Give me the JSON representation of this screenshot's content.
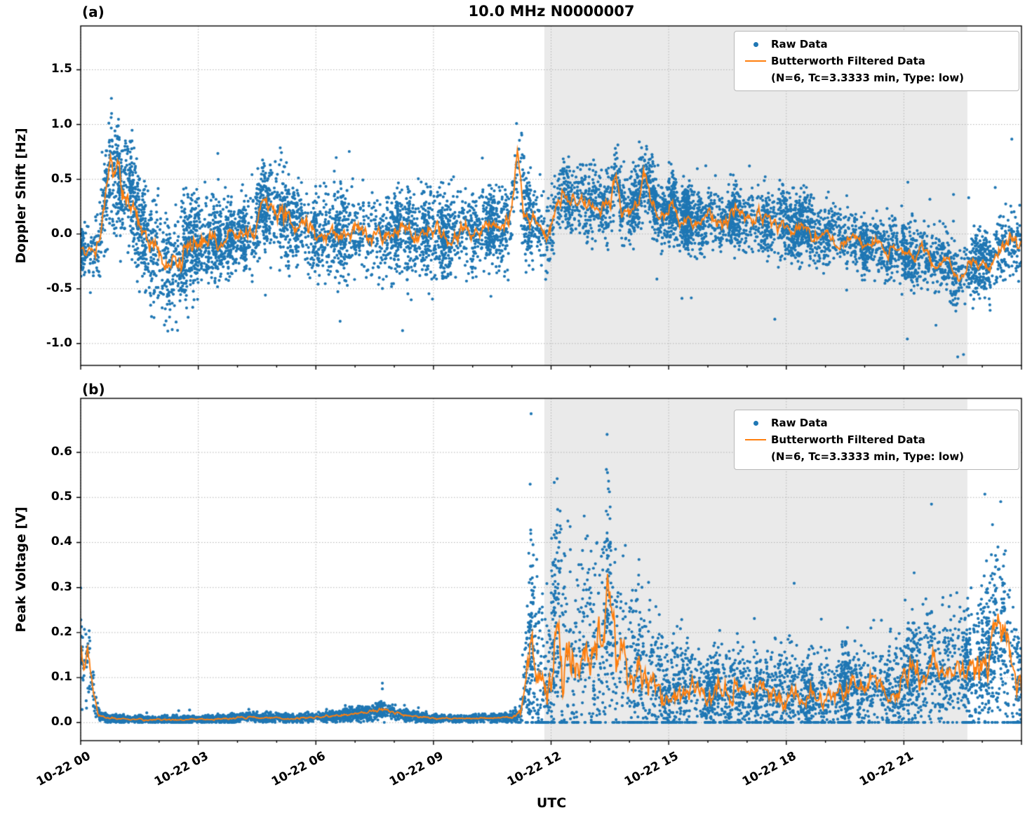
{
  "figure": {
    "title": "10.0 MHz N0000007",
    "xlabel": "UTC",
    "panel_a_label": "(a)",
    "panel_b_label": "(b)",
    "colors": {
      "raw": "#1f77b4",
      "filtered": "#ff7f0e",
      "shade": "rgba(125,125,125,0.16)",
      "grid": "#b3b3b3",
      "spine": "#000000"
    },
    "legend": {
      "raw_label": "Raw Data",
      "filtered_label": "Butterworth Filtered Data",
      "filtered_sublabel": "(N=6, Tc=3.3333 min, Type: low)"
    }
  },
  "chart_data": [
    {
      "type": "scatter",
      "panel": "a",
      "title": "10.0 MHz N0000007",
      "ylabel": "Doppler Shift [Hz]",
      "xlabel": "UTC",
      "legend": [
        "Raw Data",
        "Butterworth Filtered Data (N=6, Tc=3.3333 min, Type: low)"
      ],
      "xlim_hours": [
        0,
        24
      ],
      "x_tick_hours": [
        0,
        3,
        6,
        9,
        12,
        15,
        18,
        21
      ],
      "x_tick_labels": [
        "10-22 00",
        "10-22 03",
        "10-22 06",
        "10-22 09",
        "10-22 12",
        "10-22 15",
        "10-22 18",
        "10-22 21"
      ],
      "ylim": [
        -1.2,
        1.9
      ],
      "yticks": [
        -1.0,
        -0.5,
        0.0,
        0.5,
        1.0,
        1.5
      ],
      "ytick_labels": [
        "-1.0",
        "-0.5",
        "0.0",
        "0.5",
        "1.0",
        "1.5"
      ],
      "shaded_region_hours": [
        11.83,
        22.62
      ],
      "grid": true,
      "filtered_line": [
        [
          0,
          -0.12
        ],
        [
          0.15,
          -0.2
        ],
        [
          0.3,
          -0.15
        ],
        [
          0.45,
          -0.05
        ],
        [
          0.6,
          0.25
        ],
        [
          0.7,
          0.55
        ],
        [
          0.78,
          0.7
        ],
        [
          0.85,
          0.45
        ],
        [
          0.95,
          0.55
        ],
        [
          1.05,
          0.3
        ],
        [
          1.2,
          0.4
        ],
        [
          1.35,
          0.3
        ],
        [
          1.5,
          0.12
        ],
        [
          1.65,
          0.0
        ],
        [
          1.8,
          -0.08
        ],
        [
          1.95,
          -0.15
        ],
        [
          2.1,
          -0.3
        ],
        [
          2.25,
          -0.35
        ],
        [
          2.4,
          -0.22
        ],
        [
          2.55,
          -0.28
        ],
        [
          2.7,
          -0.18
        ],
        [
          2.85,
          -0.12
        ],
        [
          3.0,
          -0.05
        ],
        [
          3.2,
          -0.1
        ],
        [
          3.4,
          -0.02
        ],
        [
          3.6,
          -0.08
        ],
        [
          3.8,
          0.0
        ],
        [
          4.0,
          -0.04
        ],
        [
          4.2,
          0.02
        ],
        [
          4.4,
          0.0
        ],
        [
          4.6,
          0.28
        ],
        [
          4.75,
          0.22
        ],
        [
          4.9,
          0.26
        ],
        [
          5.1,
          0.18
        ],
        [
          5.3,
          0.14
        ],
        [
          5.5,
          0.1
        ],
        [
          5.7,
          0.06
        ],
        [
          5.9,
          0.02
        ],
        [
          6.1,
          0.0
        ],
        [
          6.4,
          0.04
        ],
        [
          6.7,
          0.0
        ],
        [
          7.0,
          0.03
        ],
        [
          7.3,
          -0.02
        ],
        [
          7.6,
          0.03
        ],
        [
          7.9,
          0.0
        ],
        [
          8.2,
          0.04
        ],
        [
          8.5,
          -0.02
        ],
        [
          8.8,
          0.03
        ],
        [
          9.1,
          0.0
        ],
        [
          9.4,
          -0.04
        ],
        [
          9.7,
          0.03
        ],
        [
          10.0,
          0.0
        ],
        [
          10.3,
          0.05
        ],
        [
          10.6,
          0.08
        ],
        [
          10.85,
          0.05
        ],
        [
          11.0,
          0.15
        ],
        [
          11.15,
          0.72
        ],
        [
          11.3,
          0.25
        ],
        [
          11.45,
          0.18
        ],
        [
          11.6,
          0.12
        ],
        [
          11.75,
          0.05
        ],
        [
          11.9,
          -0.05
        ],
        [
          12.0,
          0.05
        ],
        [
          12.15,
          0.3
        ],
        [
          12.3,
          0.38
        ],
        [
          12.5,
          0.28
        ],
        [
          12.7,
          0.32
        ],
        [
          12.9,
          0.26
        ],
        [
          13.1,
          0.3
        ],
        [
          13.3,
          0.24
        ],
        [
          13.5,
          0.28
        ],
        [
          13.65,
          0.55
        ],
        [
          13.8,
          0.25
        ],
        [
          14.0,
          0.22
        ],
        [
          14.2,
          0.3
        ],
        [
          14.35,
          0.55
        ],
        [
          14.5,
          0.42
        ],
        [
          14.7,
          0.2
        ],
        [
          14.9,
          0.15
        ],
        [
          15.1,
          0.28
        ],
        [
          15.3,
          0.12
        ],
        [
          15.5,
          0.18
        ],
        [
          15.8,
          0.1
        ],
        [
          16.1,
          0.16
        ],
        [
          16.4,
          0.1
        ],
        [
          16.7,
          0.2
        ],
        [
          17.0,
          0.1
        ],
        [
          17.3,
          0.16
        ],
        [
          17.6,
          0.06
        ],
        [
          17.9,
          0.12
        ],
        [
          18.2,
          0.02
        ],
        [
          18.5,
          0.08
        ],
        [
          18.8,
          -0.04
        ],
        [
          19.1,
          0.02
        ],
        [
          19.4,
          -0.08
        ],
        [
          19.7,
          -0.02
        ],
        [
          20.0,
          -0.12
        ],
        [
          20.3,
          -0.08
        ],
        [
          20.6,
          -0.18
        ],
        [
          20.9,
          -0.12
        ],
        [
          21.2,
          -0.22
        ],
        [
          21.5,
          -0.18
        ],
        [
          21.8,
          -0.28
        ],
        [
          22.1,
          -0.22
        ],
        [
          22.35,
          -0.45
        ],
        [
          22.55,
          -0.32
        ],
        [
          22.8,
          -0.28
        ],
        [
          23.0,
          -0.22
        ],
        [
          23.2,
          -0.3
        ],
        [
          23.5,
          -0.12
        ],
        [
          23.75,
          -0.05
        ],
        [
          24,
          -0.1
        ]
      ],
      "scatter_spread": [
        [
          0,
          0.12
        ],
        [
          0.5,
          0.2
        ],
        [
          0.8,
          0.28
        ],
        [
          1.2,
          0.25
        ],
        [
          1.6,
          0.22
        ],
        [
          2.0,
          0.25
        ],
        [
          2.4,
          0.28
        ],
        [
          2.8,
          0.22
        ],
        [
          3.2,
          0.18
        ],
        [
          3.6,
          0.16
        ],
        [
          4.0,
          0.16
        ],
        [
          4.5,
          0.18
        ],
        [
          5.0,
          0.22
        ],
        [
          5.5,
          0.18
        ],
        [
          6.0,
          0.18
        ],
        [
          6.5,
          0.2
        ],
        [
          7.0,
          0.18
        ],
        [
          7.5,
          0.2
        ],
        [
          8.0,
          0.18
        ],
        [
          8.5,
          0.2
        ],
        [
          9.0,
          0.2
        ],
        [
          9.5,
          0.18
        ],
        [
          10.0,
          0.16
        ],
        [
          10.5,
          0.16
        ],
        [
          11.0,
          0.2
        ],
        [
          11.2,
          0.3
        ],
        [
          11.5,
          0.18
        ],
        [
          12.0,
          0.15
        ],
        [
          12.5,
          0.16
        ],
        [
          13.0,
          0.16
        ],
        [
          13.5,
          0.16
        ],
        [
          14.0,
          0.16
        ],
        [
          14.5,
          0.16
        ],
        [
          15.0,
          0.15
        ],
        [
          15.5,
          0.15
        ],
        [
          16.0,
          0.15
        ],
        [
          16.5,
          0.15
        ],
        [
          17.0,
          0.15
        ],
        [
          17.5,
          0.15
        ],
        [
          18.0,
          0.15
        ],
        [
          18.5,
          0.15
        ],
        [
          19.0,
          0.14
        ],
        [
          19.5,
          0.14
        ],
        [
          20.0,
          0.13
        ],
        [
          20.5,
          0.13
        ],
        [
          21.0,
          0.13
        ],
        [
          21.5,
          0.13
        ],
        [
          22.0,
          0.13
        ],
        [
          22.5,
          0.13
        ],
        [
          23.0,
          0.14
        ],
        [
          23.5,
          0.15
        ],
        [
          24,
          0.16
        ]
      ]
    },
    {
      "type": "scatter",
      "panel": "b",
      "ylabel": "Peak Voltage [V]",
      "xlabel": "UTC",
      "legend": [
        "Raw Data",
        "Butterworth Filtered Data (N=6, Tc=3.3333 min, Type: low)"
      ],
      "xlim_hours": [
        0,
        24
      ],
      "x_tick_hours": [
        0,
        3,
        6,
        9,
        12,
        15,
        18,
        21
      ],
      "x_tick_labels": [
        "10-22 00",
        "10-22 03",
        "10-22 06",
        "10-22 09",
        "10-22 12",
        "10-22 15",
        "10-22 18",
        "10-22 21"
      ],
      "ylim": [
        -0.04,
        0.72
      ],
      "yticks": [
        0.0,
        0.1,
        0.2,
        0.3,
        0.4,
        0.5,
        0.6
      ],
      "ytick_labels": [
        "0.0",
        "0.1",
        "0.2",
        "0.3",
        "0.4",
        "0.5",
        "0.6"
      ],
      "shaded_region_hours": [
        11.83,
        22.62
      ],
      "grid": true,
      "filtered_line": [
        [
          0,
          0.16
        ],
        [
          0.08,
          0.12
        ],
        [
          0.18,
          0.15
        ],
        [
          0.3,
          0.08
        ],
        [
          0.45,
          0.02
        ],
        [
          0.7,
          0.01
        ],
        [
          1.0,
          0.008
        ],
        [
          1.5,
          0.007
        ],
        [
          2.0,
          0.007
        ],
        [
          2.5,
          0.006
        ],
        [
          3.0,
          0.007
        ],
        [
          3.5,
          0.008
        ],
        [
          4.0,
          0.01
        ],
        [
          4.3,
          0.014
        ],
        [
          4.6,
          0.01
        ],
        [
          5.0,
          0.012
        ],
        [
          5.4,
          0.009
        ],
        [
          5.8,
          0.012
        ],
        [
          6.2,
          0.014
        ],
        [
          6.6,
          0.016
        ],
        [
          7.0,
          0.02
        ],
        [
          7.4,
          0.022
        ],
        [
          7.7,
          0.03
        ],
        [
          8.0,
          0.022
        ],
        [
          8.3,
          0.016
        ],
        [
          8.7,
          0.012
        ],
        [
          9.0,
          0.01
        ],
        [
          9.5,
          0.009
        ],
        [
          10.0,
          0.009
        ],
        [
          10.5,
          0.01
        ],
        [
          11.0,
          0.012
        ],
        [
          11.25,
          0.02
        ],
        [
          11.4,
          0.12
        ],
        [
          11.5,
          0.2
        ],
        [
          11.6,
          0.13
        ],
        [
          11.75,
          0.07
        ],
        [
          11.9,
          0.05
        ],
        [
          12.0,
          0.1
        ],
        [
          12.15,
          0.28
        ],
        [
          12.3,
          0.13
        ],
        [
          12.45,
          0.16
        ],
        [
          12.6,
          0.09
        ],
        [
          12.75,
          0.14
        ],
        [
          12.9,
          0.18
        ],
        [
          13.05,
          0.1
        ],
        [
          13.2,
          0.15
        ],
        [
          13.35,
          0.2
        ],
        [
          13.5,
          0.31
        ],
        [
          13.65,
          0.12
        ],
        [
          13.8,
          0.18
        ],
        [
          13.95,
          0.1
        ],
        [
          14.1,
          0.09
        ],
        [
          14.25,
          0.13
        ],
        [
          14.4,
          0.07
        ],
        [
          14.6,
          0.1
        ],
        [
          14.8,
          0.07
        ],
        [
          15.0,
          0.05
        ],
        [
          15.25,
          0.08
        ],
        [
          15.5,
          0.06
        ],
        [
          15.75,
          0.09
        ],
        [
          16.0,
          0.05
        ],
        [
          16.25,
          0.07
        ],
        [
          16.5,
          0.05
        ],
        [
          16.75,
          0.08
        ],
        [
          17.0,
          0.05
        ],
        [
          17.25,
          0.07
        ],
        [
          17.5,
          0.05
        ],
        [
          17.75,
          0.06
        ],
        [
          18.0,
          0.05
        ],
        [
          18.25,
          0.07
        ],
        [
          18.5,
          0.04
        ],
        [
          18.75,
          0.06
        ],
        [
          19.0,
          0.05
        ],
        [
          19.25,
          0.06
        ],
        [
          19.5,
          0.07
        ],
        [
          19.75,
          0.08
        ],
        [
          20.0,
          0.06
        ],
        [
          20.25,
          0.09
        ],
        [
          20.5,
          0.06
        ],
        [
          20.75,
          0.07
        ],
        [
          21.0,
          0.08
        ],
        [
          21.25,
          0.12
        ],
        [
          21.5,
          0.1
        ],
        [
          21.75,
          0.14
        ],
        [
          22.0,
          0.1
        ],
        [
          22.25,
          0.13
        ],
        [
          22.5,
          0.12
        ],
        [
          22.75,
          0.11
        ],
        [
          23.0,
          0.14
        ],
        [
          23.2,
          0.16
        ],
        [
          23.4,
          0.22
        ],
        [
          23.55,
          0.18
        ],
        [
          23.7,
          0.14
        ],
        [
          23.85,
          0.11
        ],
        [
          24,
          0.1
        ]
      ],
      "scatter_spread": [
        [
          0,
          0.07
        ],
        [
          0.3,
          0.03
        ],
        [
          0.5,
          0.006
        ],
        [
          1,
          0.004
        ],
        [
          2,
          0.004
        ],
        [
          3,
          0.004
        ],
        [
          4,
          0.005
        ],
        [
          5,
          0.005
        ],
        [
          6,
          0.005
        ],
        [
          7,
          0.007
        ],
        [
          7.7,
          0.01
        ],
        [
          8,
          0.007
        ],
        [
          9,
          0.004
        ],
        [
          10,
          0.004
        ],
        [
          11,
          0.005
        ],
        [
          11.3,
          0.03
        ],
        [
          11.5,
          0.12
        ],
        [
          12,
          0.12
        ],
        [
          12.2,
          0.15
        ],
        [
          12.5,
          0.12
        ],
        [
          13,
          0.12
        ],
        [
          13.5,
          0.13
        ],
        [
          14,
          0.1
        ],
        [
          14.5,
          0.09
        ],
        [
          15,
          0.06
        ],
        [
          15.5,
          0.06
        ],
        [
          16,
          0.05
        ],
        [
          16.5,
          0.05
        ],
        [
          17,
          0.05
        ],
        [
          17.5,
          0.05
        ],
        [
          18,
          0.06
        ],
        [
          18.5,
          0.05
        ],
        [
          19,
          0.05
        ],
        [
          19.5,
          0.05
        ],
        [
          20,
          0.05
        ],
        [
          20.5,
          0.05
        ],
        [
          21,
          0.06
        ],
        [
          21.5,
          0.07
        ],
        [
          22,
          0.06
        ],
        [
          22.5,
          0.07
        ],
        [
          23,
          0.08
        ],
        [
          23.4,
          0.12
        ],
        [
          23.7,
          0.1
        ],
        [
          24,
          0.08
        ]
      ]
    }
  ]
}
